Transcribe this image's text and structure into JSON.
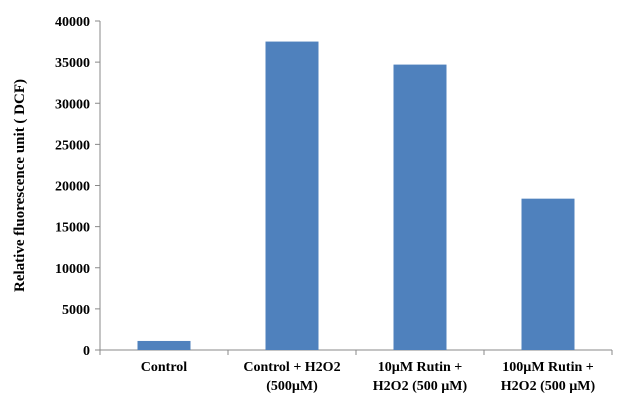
{
  "chart_data": {
    "type": "bar",
    "title": "",
    "xlabel": "",
    "ylabel": "Relative fluorescence unit ( DCF)",
    "ylim": [
      0,
      40000
    ],
    "yticks": [
      0,
      5000,
      10000,
      15000,
      20000,
      25000,
      30000,
      35000,
      40000
    ],
    "grid": false,
    "legend": "none",
    "bar_color": "#4f81bd",
    "categories": [
      [
        "Control"
      ],
      [
        "Control + H2O2",
        "(500µM)"
      ],
      [
        "10µM Rutin +",
        "H2O2 (500 µM)"
      ],
      [
        "100µM Rutin +",
        "H2O2 (500 µM)"
      ]
    ],
    "values": [
      1100,
      37500,
      34700,
      18400
    ]
  }
}
